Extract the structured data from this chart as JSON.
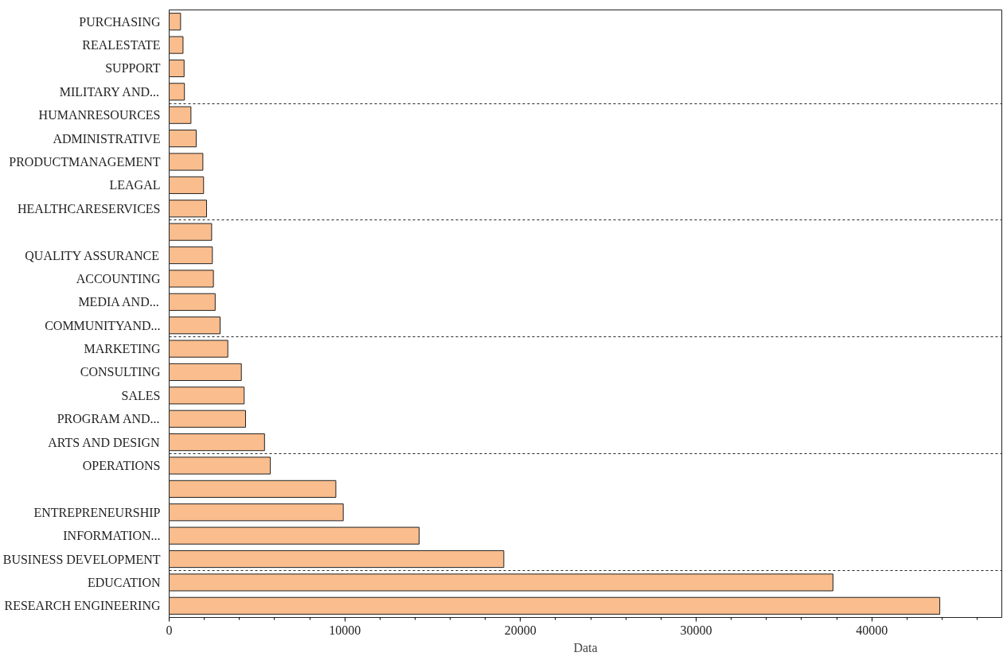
{
  "chart_data": {
    "type": "bar",
    "orientation": "horizontal",
    "xlabel": "Data",
    "categories": [
      "PURCHASING",
      "REALESTATE",
      "SUPPORT",
      "MILITARY AND...",
      "HUMANRESOURCES",
      "ADMINISTRATIVE",
      "PRODUCTMANAGEMENT",
      "LEAGAL",
      "HEALTHCARESERVICES",
      null,
      "QUALITY ASSURANCE",
      "ACCOUNTING",
      "MEDIA AND...",
      "COMMUNITYAND...",
      "MARKETING",
      "CONSULTING",
      "SALES",
      "PROGRAM AND...",
      "ARTS AND DESIGN",
      "OPERATIONS",
      null,
      "ENTREPRENEURSHIP",
      "INFORMATION...",
      "BUSINESS DEVELOPMENT",
      "EDUCATION",
      "RESEARCH ENGINEERING"
    ],
    "values": [
      650,
      790,
      850,
      870,
      1240,
      1540,
      1920,
      1960,
      2130,
      2420,
      2460,
      2520,
      2620,
      2900,
      3340,
      4110,
      4270,
      4350,
      5430,
      5760,
      9490,
      9910,
      14230,
      19050,
      37790,
      43870
    ],
    "color": "#f9bd8e",
    "xlim": [
      0,
      47400
    ],
    "xticks": [
      0,
      10000,
      20000,
      30000,
      40000
    ],
    "grid": "y"
  }
}
